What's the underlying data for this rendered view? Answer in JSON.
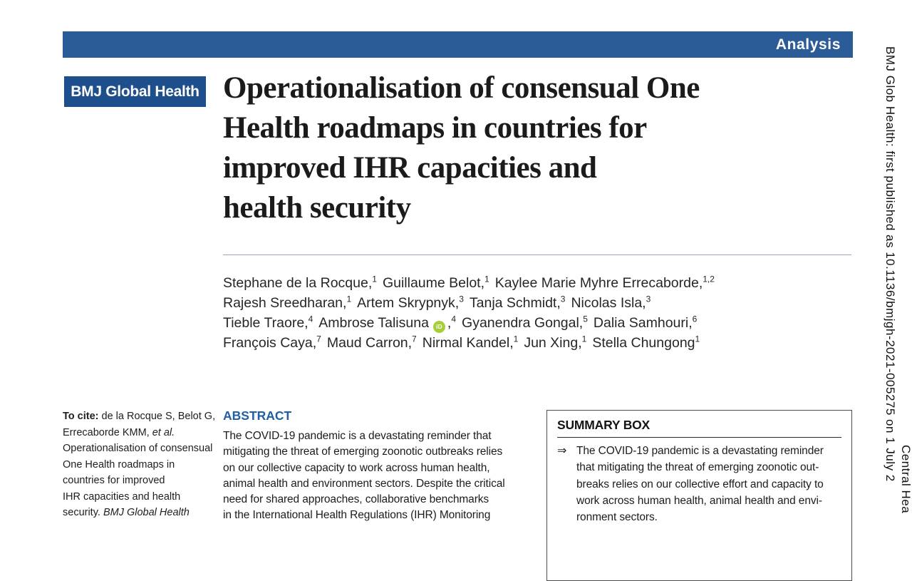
{
  "banner": {
    "label": "Analysis"
  },
  "logo": {
    "text": "BMJ Global Health"
  },
  "title": {
    "lines": [
      "Operationalisation of consensual One",
      "Health roadmaps in countries for",
      "improved IHR capacities and",
      "health security"
    ]
  },
  "authors": {
    "lines": [
      {
        "segs": [
          {
            "name": "Stephane de la Rocque,",
            "sup": "1"
          },
          {
            "name": "Guillaume Belot,",
            "sup": "1"
          },
          {
            "name": "Kaylee Marie Myhre Errecaborde,",
            "sup": "1,2"
          }
        ]
      },
      {
        "segs": [
          {
            "name": "Rajesh Sreedharan,",
            "sup": "1"
          },
          {
            "name": "Artem Skrypnyk,",
            "sup": "3"
          },
          {
            "name": "Tanja Schmidt,",
            "sup": "3"
          },
          {
            "name": "Nicolas Isla,",
            "sup": "3"
          }
        ]
      },
      {
        "segs": [
          {
            "name": "Tieble Traore,",
            "sup": "4"
          },
          {
            "name": "Ambrose Talisuna",
            "orcid": "iD",
            "after": ",",
            "sup": "4"
          },
          {
            "name": "Gyanendra Gongal,",
            "sup": "5"
          },
          {
            "name": "Dalia Samhouri,",
            "sup": "6"
          }
        ]
      },
      {
        "segs": [
          {
            "name": "François Caya,",
            "sup": "7"
          },
          {
            "name": "Maud Carron,",
            "sup": "7"
          },
          {
            "name": "Nirmal Kandel,",
            "sup": "1"
          },
          {
            "name": "Jun Xing,",
            "sup": "1"
          },
          {
            "name": "Stella Chungong",
            "sup": "1"
          }
        ]
      }
    ]
  },
  "cite": {
    "label": "To cite:",
    "line1_rest": "de la Rocque S, Belot G,",
    "line2_a": "Errecaborde KMM,",
    "line2_b": "et al.",
    "body_lines": [
      "Operationalisation of consensual",
      "One Health roadmaps in",
      "countries for improved",
      "IHR capacities and health"
    ],
    "last_a": "security.",
    "last_b": "BMJ Global Health"
  },
  "abstract": {
    "heading": "ABSTRACT",
    "lines": [
      "The COVID-19 pandemic is a devastating reminder that",
      "mitigating the threat of emerging zoonotic outbreaks relies",
      "on our collective capacity to work across human health,",
      "animal health and environment sectors. Despite the critical",
      "need for shared approaches, collaborative benchmarks",
      "in the International Health Regulations (IHR) Monitoring"
    ]
  },
  "summary_box": {
    "heading": "SUMMARY BOX",
    "bullet": "⇒",
    "lines": [
      "The COVID-19 pandemic is a devastating reminder",
      "that mitigating the threat of emerging zoonotic out-",
      "breaks relies on our collective effort and capacity to",
      "work across human health, animal health and envi-",
      "ronment sectors."
    ]
  },
  "edge": {
    "line1": "BMJ Glob Health: first published as 10.1136/bmjgh-2021-005275 on 1 July 2",
    "line2": "Central Hea"
  },
  "colors": {
    "banner_blue": "#2b5c97",
    "logo_blue": "#1e4f8c",
    "heading_blue": "#1f5fa6",
    "orcid_green": "#a6ce39"
  }
}
